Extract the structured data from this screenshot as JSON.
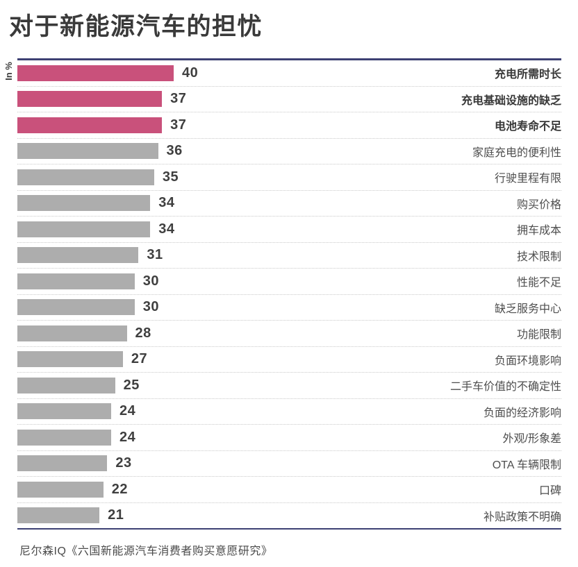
{
  "page": {
    "title": "对于新能源汽车的担忧",
    "axis_unit_label": "In %",
    "source": "尼尔森IQ《六国新能源汽车消费者购买意愿研究》"
  },
  "colors": {
    "highlight_bar": "#c9517b",
    "default_bar": "#adadad",
    "frame_line": "#3d4173",
    "title_text": "#3a3a3a",
    "value_text": "#3f3f3f",
    "category_text": "#4e4e4e",
    "category_bold_text": "#383838",
    "separator": "#c9c9c9",
    "source_text": "#4a4a4a"
  },
  "chart_data": {
    "type": "bar",
    "orientation": "horizontal",
    "unit": "%",
    "title": "对于新能源汽车的担忧",
    "xlabel": "In %",
    "ylabel": "",
    "xlim": [
      0,
      40
    ],
    "grid": false,
    "value_labels_shown": true,
    "legend": "none",
    "categories": [
      "充电所需时长",
      "充电基础设施的缺乏",
      "电池寿命不足",
      "家庭充电的便利性",
      "行驶里程有限",
      "购买价格",
      "拥车成本",
      "技术限制",
      "性能不足",
      "缺乏服务中心",
      "功能限制",
      "负面环境影响",
      "二手车价值的不确定性",
      "负面的经济影响",
      "外观/形象差",
      "OTA 车辆限制",
      "口碑",
      "补贴政策不明确"
    ],
    "values": [
      40,
      37,
      37,
      36,
      35,
      34,
      34,
      31,
      30,
      30,
      28,
      27,
      25,
      24,
      24,
      23,
      22,
      21
    ],
    "highlighted": [
      true,
      true,
      true,
      false,
      false,
      false,
      false,
      false,
      false,
      false,
      false,
      false,
      false,
      false,
      false,
      false,
      false,
      false
    ]
  }
}
